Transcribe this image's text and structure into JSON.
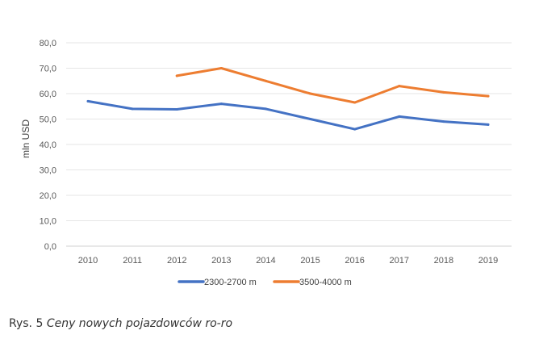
{
  "chart_data": {
    "type": "line",
    "title": "",
    "xlabel": "",
    "ylabel": "mln USD",
    "ylim": [
      0,
      80
    ],
    "ytick_step": 10,
    "ytick_labels": [
      "0,0",
      "10,0",
      "20,0",
      "30,0",
      "40,0",
      "50,0",
      "60,0",
      "70,0",
      "80,0"
    ],
    "categories": [
      "2010",
      "2011",
      "2012",
      "2013",
      "2014",
      "2015",
      "2016",
      "2017",
      "2018",
      "2019"
    ],
    "grid": true,
    "legend_position": "bottom",
    "series": [
      {
        "name": "2300-2700 m",
        "color": "#4472C4",
        "values": [
          57.0,
          54.0,
          53.8,
          56.0,
          54.0,
          50.0,
          46.0,
          51.0,
          49.0,
          47.8
        ]
      },
      {
        "name": "3500-4000 m",
        "color": "#ED7D31",
        "values": [
          null,
          null,
          67.0,
          70.0,
          65.0,
          60.0,
          56.5,
          63.0,
          60.5,
          59.0
        ]
      }
    ]
  },
  "caption": {
    "prefix": "Rys. 5",
    "title": "Ceny nowych pojazdowców ro-ro"
  }
}
